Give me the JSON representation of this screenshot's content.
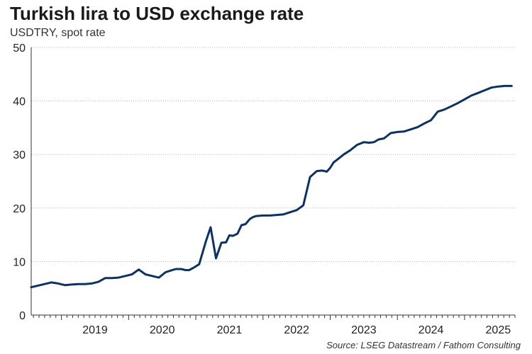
{
  "chart_data": {
    "type": "line",
    "title": "Turkish lira to USD exchange rate",
    "subtitle": "USDTRY, spot rate",
    "source": "Source: LSEG Datastream / Fathom Consulting",
    "xlabel": "",
    "ylabel": "",
    "ylim": [
      0,
      50
    ],
    "yticks": [
      0,
      10,
      20,
      30,
      40,
      50
    ],
    "xlim": [
      2018.55,
      2025.75
    ],
    "xticks": [
      2019,
      2020,
      2021,
      2022,
      2023,
      2024,
      2025
    ],
    "x_tick_labels": [
      "2019",
      "2020",
      "2021",
      "2022",
      "2023",
      "2024",
      "2025"
    ],
    "grid": true,
    "line_color": "#0d3260",
    "series": [
      {
        "x": [
          2018.55,
          2018.65,
          2018.75,
          2018.85,
          2018.95,
          2019.05,
          2019.15,
          2019.25,
          2019.35,
          2019.45,
          2019.55,
          2019.65,
          2019.75,
          2019.85,
          2019.95,
          2020.05,
          2020.15,
          2020.25,
          2020.35,
          2020.45,
          2020.55,
          2020.62,
          2020.7,
          2020.78,
          2020.85,
          2020.9,
          2020.96,
          2021.05,
          2021.15,
          2021.22,
          2021.3,
          2021.38,
          2021.45,
          2021.5,
          2021.55,
          2021.62,
          2021.68,
          2021.74,
          2021.78,
          2021.81,
          2021.85,
          2021.9,
          2022.0,
          2022.1,
          2022.2,
          2022.3,
          2022.4,
          2022.5,
          2022.6,
          2022.7,
          2022.8,
          2022.88,
          2022.95,
          2023.0,
          2023.05,
          2023.1,
          2023.2,
          2023.3,
          2023.4,
          2023.5,
          2023.58,
          2023.65,
          2023.72,
          2023.8,
          2023.9,
          2024.0,
          2024.1,
          2024.2,
          2024.3,
          2024.4,
          2024.5,
          2024.6,
          2024.7,
          2024.8,
          2024.9,
          2025.0,
          2025.1,
          2025.2,
          2025.3,
          2025.4,
          2025.5,
          2025.6,
          2025.7
        ],
        "values": [
          5.2,
          5.5,
          5.8,
          6.1,
          5.9,
          5.6,
          5.7,
          5.8,
          5.8,
          5.9,
          6.2,
          6.9,
          6.9,
          7.0,
          7.3,
          7.6,
          8.5,
          7.6,
          7.3,
          7.0,
          8.0,
          8.3,
          8.6,
          8.6,
          8.4,
          8.4,
          8.8,
          9.5,
          13.8,
          16.4,
          10.6,
          13.5,
          13.6,
          14.9,
          14.8,
          15.2,
          16.8,
          17.0,
          17.6,
          18.0,
          18.3,
          18.5,
          18.6,
          18.6,
          18.7,
          18.8,
          19.2,
          19.6,
          20.5,
          25.8,
          26.9,
          27.0,
          26.8,
          27.5,
          28.5,
          29.0,
          30.0,
          30.8,
          31.8,
          32.3,
          32.2,
          32.3,
          32.8,
          33.0,
          34.0,
          34.2,
          34.3,
          34.7,
          35.1,
          35.8,
          36.4,
          38.0,
          38.4,
          39.0,
          39.6,
          40.3,
          41.0,
          41.5,
          42.0,
          42.5,
          42.7,
          42.8,
          42.8
        ]
      }
    ]
  }
}
